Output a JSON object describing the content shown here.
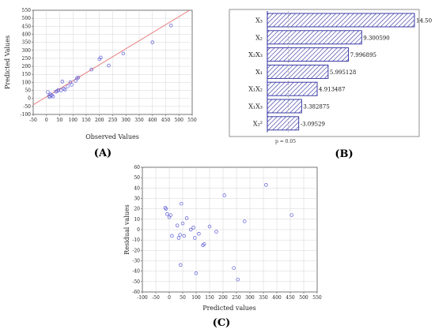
{
  "panels": {
    "a": "(A)",
    "b": "(B)",
    "c": "(C)"
  },
  "colors": {
    "points": "#5a5ad6",
    "fit_line": "#e87878",
    "bars": "#2a2a9e",
    "axis": "#555555",
    "grid": "#d4d4d4"
  },
  "chart_data": [
    {
      "type": "scatter",
      "panel": "(A)",
      "xlabel": "Observed Values",
      "ylabel": "Predicted Values",
      "xlim": [
        -50,
        550
      ],
      "ylim": [
        -100,
        550
      ],
      "xticks": [
        -50,
        0,
        50,
        100,
        150,
        200,
        250,
        300,
        350,
        400,
        450,
        500,
        550
      ],
      "yticks": [
        -100,
        -50,
        0,
        50,
        100,
        150,
        200,
        250,
        300,
        350,
        400,
        450,
        500,
        550
      ],
      "grid": true,
      "fit_line": [
        [
          -50,
          -40
        ],
        [
          550,
          560
        ]
      ],
      "points": [
        [
          5,
          40
        ],
        [
          10,
          15
        ],
        [
          12,
          8
        ],
        [
          15,
          25
        ],
        [
          20,
          20
        ],
        [
          25,
          12
        ],
        [
          35,
          42
        ],
        [
          40,
          45
        ],
        [
          45,
          52
        ],
        [
          55,
          50
        ],
        [
          60,
          105
        ],
        [
          65,
          60
        ],
        [
          70,
          55
        ],
        [
          80,
          75
        ],
        [
          90,
          100
        ],
        [
          95,
          85
        ],
        [
          110,
          110
        ],
        [
          115,
          125
        ],
        [
          120,
          130
        ],
        [
          170,
          180
        ],
        [
          200,
          245
        ],
        [
          205,
          255
        ],
        [
          235,
          205
        ],
        [
          290,
          280
        ],
        [
          400,
          350
        ],
        [
          470,
          455
        ]
      ]
    },
    {
      "type": "bar",
      "panel": "(B)",
      "orientation": "horizontal",
      "categories": [
        "X₃",
        "X₂",
        "X₂X₃",
        "X₁",
        "X₁X₂",
        "X₁X₃",
        "X₂²"
      ],
      "values": [
        14.5,
        9.30059,
        7.996895,
        5.995128,
        4.913487,
        3.382875,
        -3.09529
      ],
      "value_labels": [
        "14.50",
        "9.300590",
        "7.996895",
        "5.995128",
        "4.913487",
        "3.382875",
        "-3.09529"
      ],
      "xlim": [
        0,
        14.5
      ],
      "annotation": "p = 0.05",
      "significance_value": 2.06
    },
    {
      "type": "scatter",
      "panel": "(C)",
      "xlabel": "Predicted values",
      "ylabel": "Residual values",
      "xlim": [
        -100,
        550
      ],
      "ylim": [
        -60,
        60
      ],
      "xticks": [
        -100,
        -50,
        0,
        50,
        100,
        150,
        200,
        250,
        300,
        350,
        400,
        450,
        500,
        550
      ],
      "yticks": [
        -60,
        -50,
        -40,
        -30,
        -20,
        -10,
        0,
        10,
        20,
        30,
        40,
        50,
        60
      ],
      "grid": true,
      "points": [
        [
          -15,
          21
        ],
        [
          -12,
          20
        ],
        [
          -8,
          15
        ],
        [
          0,
          12
        ],
        [
          5,
          14
        ],
        [
          10,
          -6
        ],
        [
          30,
          4
        ],
        [
          35,
          -8
        ],
        [
          40,
          -5
        ],
        [
          42,
          -34
        ],
        [
          45,
          25
        ],
        [
          50,
          6
        ],
        [
          55,
          -6
        ],
        [
          65,
          11
        ],
        [
          80,
          0
        ],
        [
          90,
          2
        ],
        [
          95,
          -8
        ],
        [
          100,
          -42
        ],
        [
          110,
          -4
        ],
        [
          125,
          -15
        ],
        [
          130,
          -14
        ],
        [
          150,
          3
        ],
        [
          175,
          -2
        ],
        [
          205,
          33
        ],
        [
          240,
          -37
        ],
        [
          255,
          -48
        ],
        [
          280,
          8
        ],
        [
          360,
          43
        ],
        [
          455,
          14
        ]
      ]
    }
  ]
}
